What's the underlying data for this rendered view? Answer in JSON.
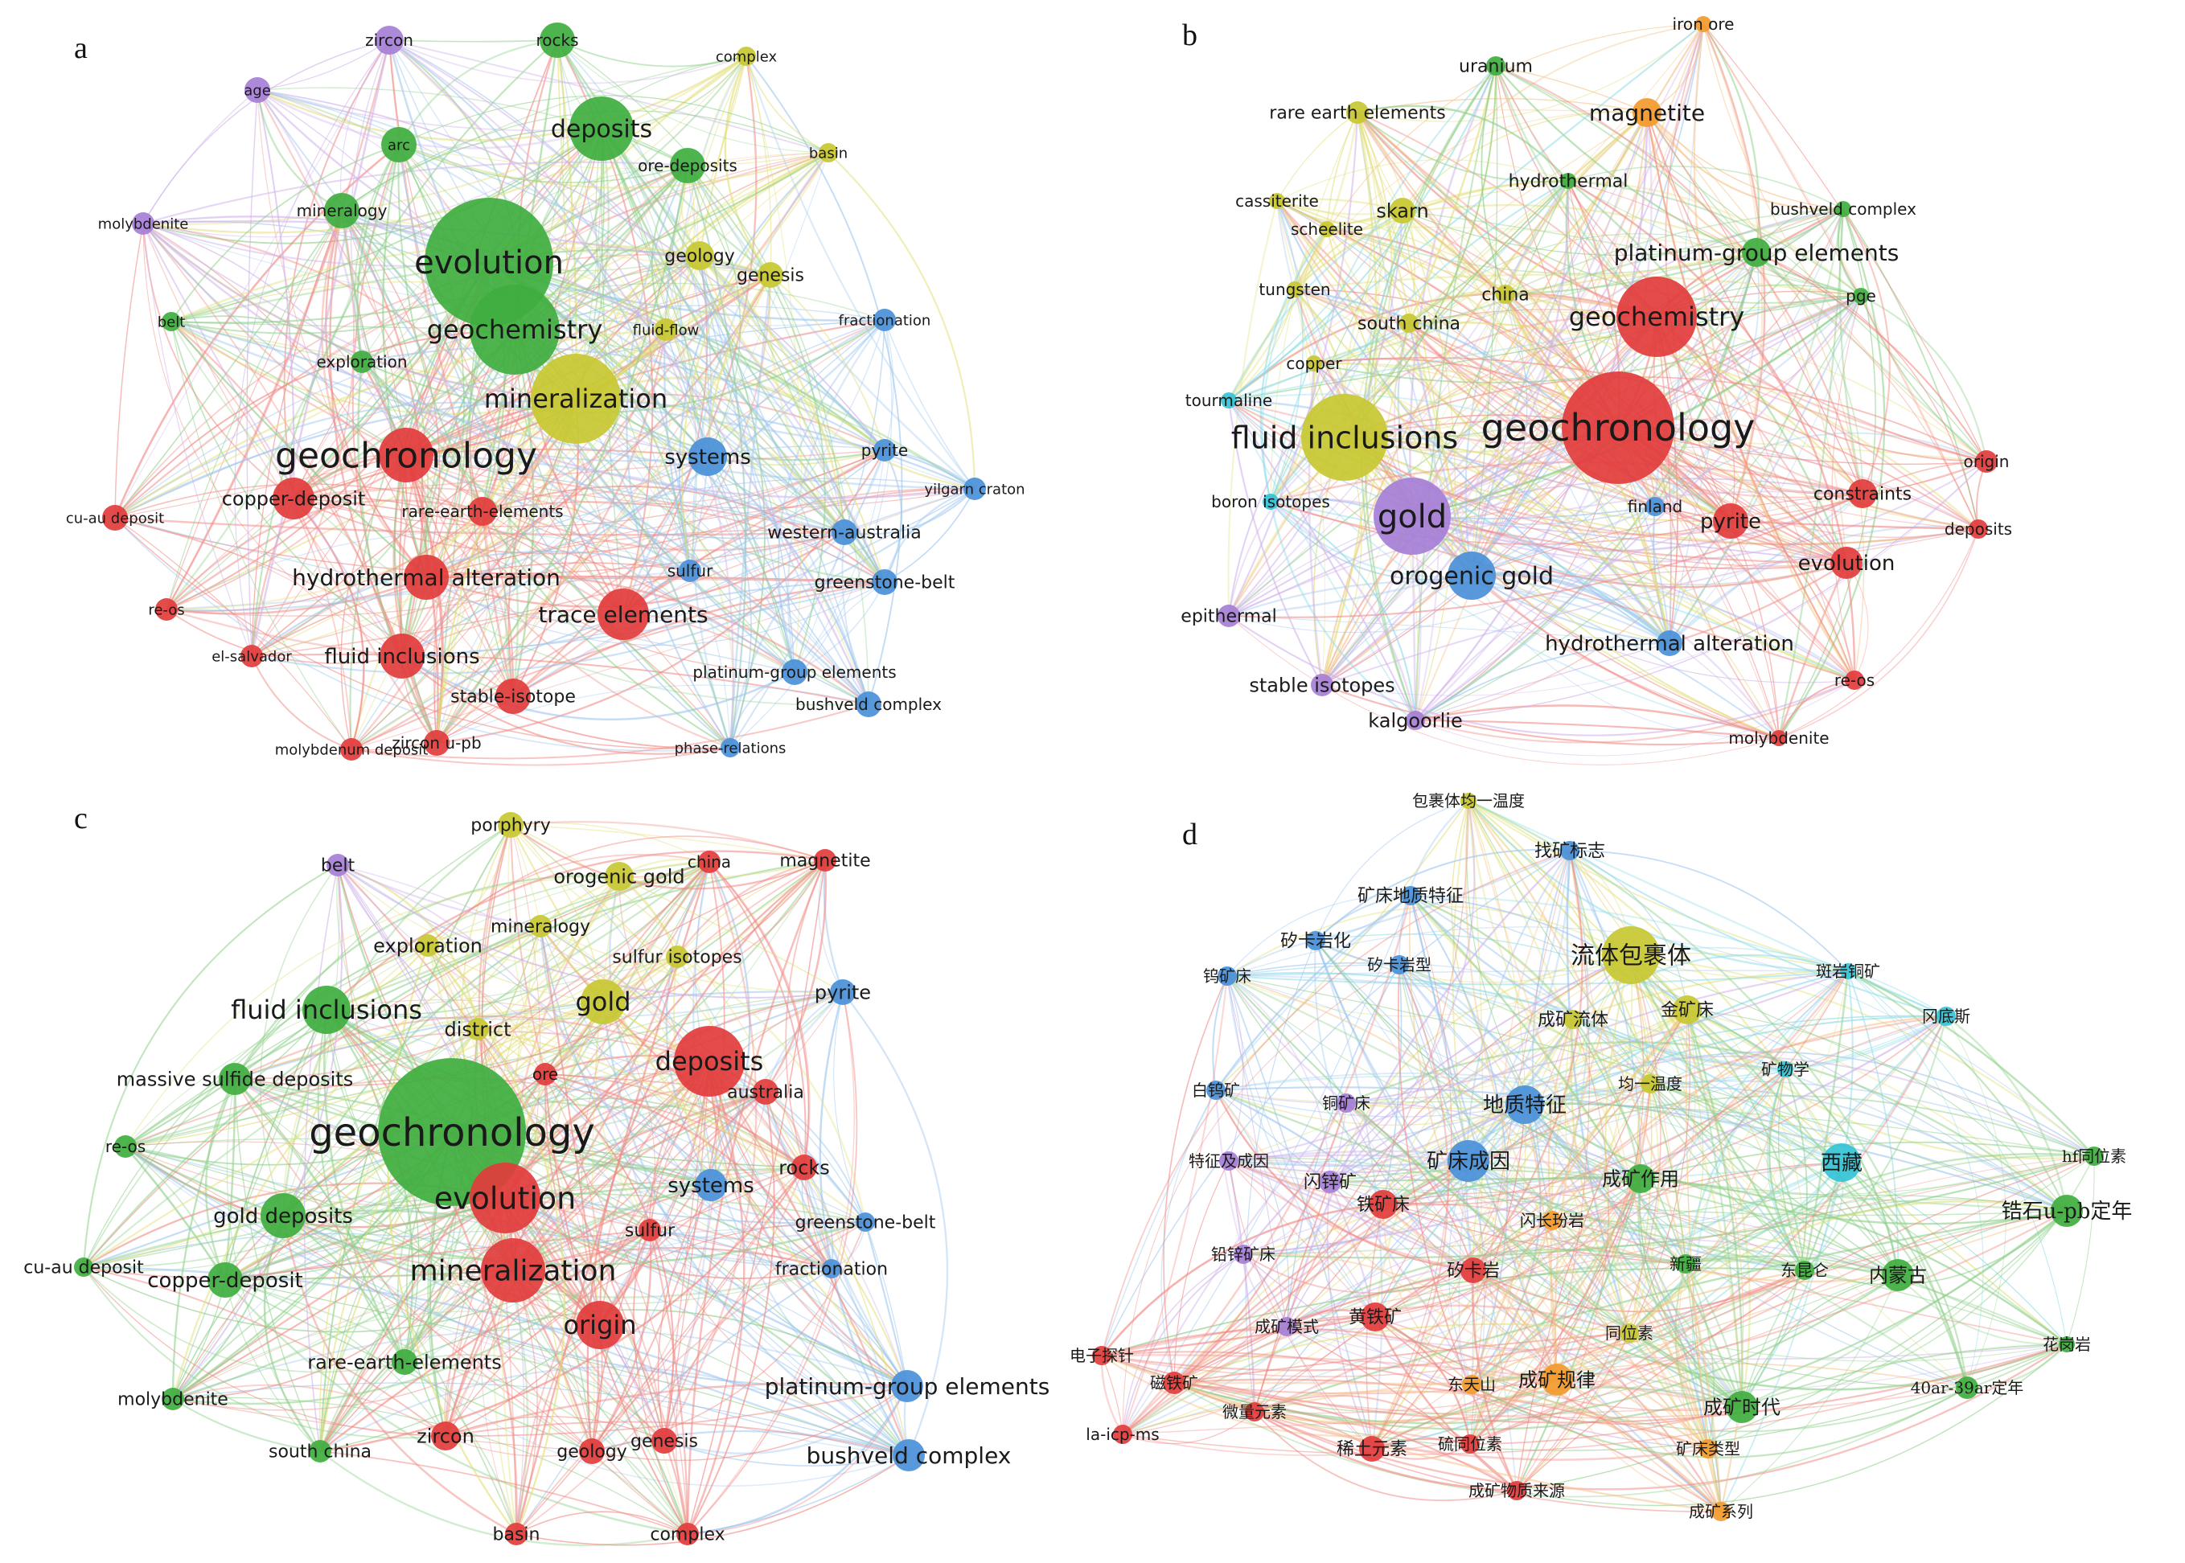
{
  "colors": {
    "red": "#e23c3c",
    "green": "#3fae3f",
    "blue": "#4a90d9",
    "yellow": "#c8c832",
    "purple": "#a67fd6",
    "cyan": "#35c3d6",
    "orange": "#f39a2d",
    "edge_red": "#f08a84",
    "edge_green": "#8fd08a",
    "edge_blue": "#9ec6ee",
    "edge_yellow": "#e3e07c",
    "edge_purple": "#cfb2ea",
    "edge_cyan": "#8fdce8",
    "edge_orange": "#f6c48c"
  },
  "panels": [
    {
      "letter": "a",
      "nodes": [
        {
          "label": "geochronology",
          "c": "red",
          "s": 5
        },
        {
          "label": "evolution",
          "c": "green",
          "s": 4
        },
        {
          "label": "geochemistry",
          "c": "green",
          "s": 3
        },
        {
          "label": "deposits",
          "c": "green",
          "s": 3
        },
        {
          "label": "mineralization",
          "c": "yellow",
          "s": 3
        },
        {
          "label": "trace elements",
          "c": "red",
          "s": 2
        },
        {
          "label": "hydrothermal alteration",
          "c": "red",
          "s": 2
        },
        {
          "label": "fluid inclusions",
          "c": "red",
          "s": 2
        },
        {
          "label": "copper-deposit",
          "c": "red",
          "s": 2
        },
        {
          "label": "rare-earth-elements",
          "c": "red",
          "s": 1
        },
        {
          "label": "stable-isotope",
          "c": "red",
          "s": 1
        },
        {
          "label": "zircon u-pb",
          "c": "red",
          "s": 1
        },
        {
          "label": "molybdenum deposit",
          "c": "red",
          "s": 1
        },
        {
          "label": "el-salvador",
          "c": "red",
          "s": 1
        },
        {
          "label": "re-os",
          "c": "red",
          "s": 1
        },
        {
          "label": "cu-au deposit",
          "c": "red",
          "s": 1
        },
        {
          "label": "systems",
          "c": "blue",
          "s": 2
        },
        {
          "label": "western-australia",
          "c": "blue",
          "s": 1
        },
        {
          "label": "greenstone-belt",
          "c": "blue",
          "s": 1
        },
        {
          "label": "platinum-group elements",
          "c": "blue",
          "s": 1
        },
        {
          "label": "bushveld complex",
          "c": "blue",
          "s": 1
        },
        {
          "label": "phase-relations",
          "c": "blue",
          "s": 1
        },
        {
          "label": "sulfur",
          "c": "blue",
          "s": 1
        },
        {
          "label": "pyrite",
          "c": "blue",
          "s": 1
        },
        {
          "label": "yilgarn craton",
          "c": "blue",
          "s": 1
        },
        {
          "label": "fractionation",
          "c": "blue",
          "s": 1
        },
        {
          "label": "genesis",
          "c": "yellow",
          "s": 1
        },
        {
          "label": "geology",
          "c": "yellow",
          "s": 1
        },
        {
          "label": "fluid-flow",
          "c": "yellow",
          "s": 1
        },
        {
          "label": "basin",
          "c": "yellow",
          "s": 1
        },
        {
          "label": "complex",
          "c": "yellow",
          "s": 1
        },
        {
          "label": "ore-deposits",
          "c": "green",
          "s": 1
        },
        {
          "label": "rocks",
          "c": "green",
          "s": 1
        },
        {
          "label": "zircon",
          "c": "purple",
          "s": 1
        },
        {
          "label": "age",
          "c": "purple",
          "s": 1
        },
        {
          "label": "molybdenite",
          "c": "purple",
          "s": 1
        },
        {
          "label": "mineralogy",
          "c": "green",
          "s": 1
        },
        {
          "label": "arc",
          "c": "green",
          "s": 1
        },
        {
          "label": "belt",
          "c": "green",
          "s": 1
        },
        {
          "label": "exploration",
          "c": "green",
          "s": 1
        }
      ]
    },
    {
      "letter": "b",
      "nodes": [
        {
          "label": "geochronology",
          "c": "red",
          "s": 5
        },
        {
          "label": "fluid inclusions",
          "c": "yellow",
          "s": 4
        },
        {
          "label": "gold",
          "c": "purple",
          "s": 4
        },
        {
          "label": "geochemistry",
          "c": "red",
          "s": 3
        },
        {
          "label": "orogenic gold",
          "c": "blue",
          "s": 3
        },
        {
          "label": "magnetite",
          "c": "orange",
          "s": 2
        },
        {
          "label": "platinum-group elements",
          "c": "green",
          "s": 2
        },
        {
          "label": "pyrite",
          "c": "red",
          "s": 2
        },
        {
          "label": "evolution",
          "c": "red",
          "s": 2
        },
        {
          "label": "hydrothermal alteration",
          "c": "blue",
          "s": 2
        },
        {
          "label": "skarn",
          "c": "yellow",
          "s": 1
        },
        {
          "label": "china",
          "c": "yellow",
          "s": 1
        },
        {
          "label": "south china",
          "c": "yellow",
          "s": 1
        },
        {
          "label": "copper",
          "c": "yellow",
          "s": 1
        },
        {
          "label": "tungsten",
          "c": "yellow",
          "s": 1
        },
        {
          "label": "scheelite",
          "c": "yellow",
          "s": 1
        },
        {
          "label": "cassiterite",
          "c": "yellow",
          "s": 1
        },
        {
          "label": "rare earth elements",
          "c": "yellow",
          "s": 1
        },
        {
          "label": "uranium",
          "c": "green",
          "s": 1
        },
        {
          "label": "iron ore",
          "c": "orange",
          "s": 1
        },
        {
          "label": "hydrothermal",
          "c": "green",
          "s": 1
        },
        {
          "label": "bushveld complex",
          "c": "green",
          "s": 1
        },
        {
          "label": "pge",
          "c": "green",
          "s": 1
        },
        {
          "label": "tourmaline",
          "c": "cyan",
          "s": 1
        },
        {
          "label": "boron isotopes",
          "c": "cyan",
          "s": 1
        },
        {
          "label": "finland",
          "c": "blue",
          "s": 1
        },
        {
          "label": "constraints",
          "c": "red",
          "s": 1
        },
        {
          "label": "origin",
          "c": "red",
          "s": 1
        },
        {
          "label": "deposits",
          "c": "red",
          "s": 1
        },
        {
          "label": "re-os",
          "c": "red",
          "s": 1
        },
        {
          "label": "molybdenite",
          "c": "red",
          "s": 1
        },
        {
          "label": "epithermal",
          "c": "purple",
          "s": 1
        },
        {
          "label": "stable isotopes",
          "c": "purple",
          "s": 1
        },
        {
          "label": "kalgoorlie",
          "c": "purple",
          "s": 1
        }
      ]
    },
    {
      "letter": "c",
      "nodes": [
        {
          "label": "geochronology",
          "c": "green",
          "s": 5
        },
        {
          "label": "evolution",
          "c": "red",
          "s": 4
        },
        {
          "label": "mineralization",
          "c": "red",
          "s": 3
        },
        {
          "label": "deposits",
          "c": "red",
          "s": 3
        },
        {
          "label": "fluid inclusions",
          "c": "green",
          "s": 3
        },
        {
          "label": "gold",
          "c": "yellow",
          "s": 2
        },
        {
          "label": "origin",
          "c": "red",
          "s": 2
        },
        {
          "label": "gold deposits",
          "c": "green",
          "s": 2
        },
        {
          "label": "copper-deposit",
          "c": "green",
          "s": 2
        },
        {
          "label": "systems",
          "c": "blue",
          "s": 1
        },
        {
          "label": "greenstone-belt",
          "c": "blue",
          "s": 1
        },
        {
          "label": "fractionation",
          "c": "blue",
          "s": 1
        },
        {
          "label": "platinum-group elements",
          "c": "blue",
          "s": 2
        },
        {
          "label": "bushveld complex",
          "c": "blue",
          "s": 2
        },
        {
          "label": "pyrite",
          "c": "blue",
          "s": 1
        },
        {
          "label": "massive sulfide deposits",
          "c": "green",
          "s": 1
        },
        {
          "label": "rare-earth-elements",
          "c": "green",
          "s": 1
        },
        {
          "label": "molybdenite",
          "c": "green",
          "s": 1
        },
        {
          "label": "south china",
          "c": "green",
          "s": 1
        },
        {
          "label": "cu-au deposit",
          "c": "green",
          "s": 1
        },
        {
          "label": "re-os",
          "c": "green",
          "s": 1
        },
        {
          "label": "zircon",
          "c": "red",
          "s": 1
        },
        {
          "label": "geology",
          "c": "red",
          "s": 1
        },
        {
          "label": "genesis",
          "c": "red",
          "s": 1
        },
        {
          "label": "basin",
          "c": "red",
          "s": 1
        },
        {
          "label": "complex",
          "c": "red",
          "s": 1
        },
        {
          "label": "sulfur",
          "c": "red",
          "s": 1
        },
        {
          "label": "rocks",
          "c": "red",
          "s": 1
        },
        {
          "label": "australia",
          "c": "red",
          "s": 1
        },
        {
          "label": "ore",
          "c": "red",
          "s": 1
        },
        {
          "label": "district",
          "c": "yellow",
          "s": 1
        },
        {
          "label": "sulfur isotopes",
          "c": "yellow",
          "s": 1
        },
        {
          "label": "mineralogy",
          "c": "yellow",
          "s": 1
        },
        {
          "label": "exploration",
          "c": "yellow",
          "s": 1
        },
        {
          "label": "orogenic gold",
          "c": "yellow",
          "s": 1
        },
        {
          "label": "porphyry",
          "c": "yellow",
          "s": 1
        },
        {
          "label": "china",
          "c": "red",
          "s": 1
        },
        {
          "label": "magnetite",
          "c": "red",
          "s": 1
        },
        {
          "label": "belt",
          "c": "purple",
          "s": 1
        }
      ]
    },
    {
      "letter": "d",
      "nodes": [
        {
          "label": "流体包裹体",
          "c": "yellow",
          "s": 3
        },
        {
          "label": "包裹体均一温度",
          "c": "yellow",
          "s": 1
        },
        {
          "label": "找矿标志",
          "c": "blue",
          "s": 1
        },
        {
          "label": "矿床地质特征",
          "c": "blue",
          "s": 1
        },
        {
          "label": "矽卡岩化",
          "c": "blue",
          "s": 1
        },
        {
          "label": "矽卡岩型",
          "c": "blue",
          "s": 1
        },
        {
          "label": "钨矿床",
          "c": "blue",
          "s": 1
        },
        {
          "label": "成矿流体",
          "c": "yellow",
          "s": 1
        },
        {
          "label": "金矿床",
          "c": "yellow",
          "s": 2
        },
        {
          "label": "斑岩铜矿",
          "c": "cyan",
          "s": 1
        },
        {
          "label": "冈底斯",
          "c": "cyan",
          "s": 1
        },
        {
          "label": "矿物学",
          "c": "cyan",
          "s": 1
        },
        {
          "label": "均一温度",
          "c": "yellow",
          "s": 1
        },
        {
          "label": "白钨矿",
          "c": "blue",
          "s": 1
        },
        {
          "label": "铜矿床",
          "c": "purple",
          "s": 1
        },
        {
          "label": "地质特征",
          "c": "blue",
          "s": 2
        },
        {
          "label": "矿床成因",
          "c": "blue",
          "s": 2
        },
        {
          "label": "成矿作用",
          "c": "green",
          "s": 2
        },
        {
          "label": "西藏",
          "c": "cyan",
          "s": 2
        },
        {
          "label": "hf同位素",
          "c": "green",
          "s": 1
        },
        {
          "label": "锆石u-pb定年",
          "c": "green",
          "s": 2
        },
        {
          "label": "特征及成因",
          "c": "purple",
          "s": 1
        },
        {
          "label": "闪锌矿",
          "c": "purple",
          "s": 1
        },
        {
          "label": "铁矿床",
          "c": "red",
          "s": 1
        },
        {
          "label": "闪长玢岩",
          "c": "orange",
          "s": 1
        },
        {
          "label": "新疆",
          "c": "green",
          "s": 1
        },
        {
          "label": "东昆仑",
          "c": "green",
          "s": 1
        },
        {
          "label": "内蒙古",
          "c": "green",
          "s": 2
        },
        {
          "label": "铅锌矿床",
          "c": "purple",
          "s": 1
        },
        {
          "label": "矽卡岩",
          "c": "red",
          "s": 1
        },
        {
          "label": "黄铁矿",
          "c": "red",
          "s": 2
        },
        {
          "label": "成矿模式",
          "c": "purple",
          "s": 1
        },
        {
          "label": "同位素",
          "c": "yellow",
          "s": 1
        },
        {
          "label": "花岗岩",
          "c": "green",
          "s": 1
        },
        {
          "label": "电子探针",
          "c": "red",
          "s": 1
        },
        {
          "label": "磁铁矿",
          "c": "red",
          "s": 1
        },
        {
          "label": "东天山",
          "c": "orange",
          "s": 1
        },
        {
          "label": "成矿规律",
          "c": "orange",
          "s": 2
        },
        {
          "label": "成矿时代",
          "c": "green",
          "s": 2
        },
        {
          "label": "40ar-39ar定年",
          "c": "green",
          "s": 1
        },
        {
          "label": "微量元素",
          "c": "red",
          "s": 1
        },
        {
          "label": "la-icp-ms",
          "c": "red",
          "s": 1
        },
        {
          "label": "稀土元素",
          "c": "red",
          "s": 1
        },
        {
          "label": "硫同位素",
          "c": "red",
          "s": 1
        },
        {
          "label": "矿床类型",
          "c": "orange",
          "s": 1
        },
        {
          "label": "成矿物质来源",
          "c": "red",
          "s": 1
        },
        {
          "label": "成矿系列",
          "c": "orange",
          "s": 1
        }
      ]
    }
  ]
}
